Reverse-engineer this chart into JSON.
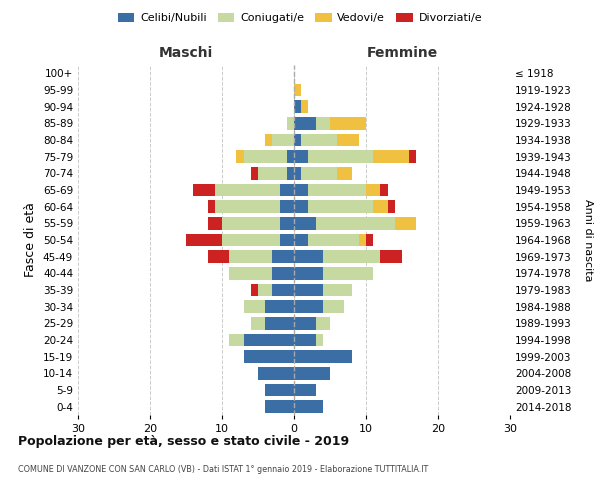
{
  "age_groups": [
    "0-4",
    "5-9",
    "10-14",
    "15-19",
    "20-24",
    "25-29",
    "30-34",
    "35-39",
    "40-44",
    "45-49",
    "50-54",
    "55-59",
    "60-64",
    "65-69",
    "70-74",
    "75-79",
    "80-84",
    "85-89",
    "90-94",
    "95-99",
    "100+"
  ],
  "birth_years": [
    "2014-2018",
    "2009-2013",
    "2004-2008",
    "1999-2003",
    "1994-1998",
    "1989-1993",
    "1984-1988",
    "1979-1983",
    "1974-1978",
    "1969-1973",
    "1964-1968",
    "1959-1963",
    "1954-1958",
    "1949-1953",
    "1944-1948",
    "1939-1943",
    "1934-1938",
    "1929-1933",
    "1924-1928",
    "1919-1923",
    "≤ 1918"
  ],
  "colors": {
    "celibi": "#3a6ea5",
    "coniugati": "#c5d9a0",
    "vedovi": "#f0c040",
    "divorziati": "#cc2222"
  },
  "males": {
    "celibi": [
      4,
      4,
      5,
      7,
      7,
      4,
      4,
      3,
      3,
      3,
      2,
      2,
      2,
      2,
      1,
      1,
      0,
      0,
      0,
      0,
      0
    ],
    "coniugati": [
      0,
      0,
      0,
      0,
      2,
      2,
      3,
      2,
      6,
      6,
      8,
      8,
      9,
      9,
      4,
      6,
      3,
      1,
      0,
      0,
      0
    ],
    "vedovi": [
      0,
      0,
      0,
      0,
      0,
      0,
      0,
      0,
      0,
      0,
      0,
      0,
      0,
      0,
      0,
      1,
      1,
      0,
      0,
      0,
      0
    ],
    "divorziati": [
      0,
      0,
      0,
      0,
      0,
      0,
      0,
      1,
      0,
      3,
      5,
      2,
      1,
      3,
      1,
      0,
      0,
      0,
      0,
      0,
      0
    ]
  },
  "females": {
    "celibi": [
      4,
      3,
      5,
      8,
      3,
      3,
      4,
      4,
      4,
      4,
      2,
      3,
      2,
      2,
      1,
      2,
      1,
      3,
      1,
      0,
      0
    ],
    "coniugati": [
      0,
      0,
      0,
      0,
      1,
      2,
      3,
      4,
      7,
      8,
      7,
      11,
      9,
      8,
      5,
      9,
      5,
      2,
      0,
      0,
      0
    ],
    "vedovi": [
      0,
      0,
      0,
      0,
      0,
      0,
      0,
      0,
      0,
      0,
      1,
      3,
      2,
      2,
      2,
      5,
      3,
      5,
      1,
      1,
      0
    ],
    "divorziati": [
      0,
      0,
      0,
      0,
      0,
      0,
      0,
      0,
      0,
      3,
      1,
      0,
      1,
      1,
      0,
      1,
      0,
      0,
      0,
      0,
      0
    ]
  },
  "title": "Popolazione per età, sesso e stato civile - 2019",
  "subtitle": "COMUNE DI VANZONE CON SAN CARLO (VB) - Dati ISTAT 1° gennaio 2019 - Elaborazione TUTTITALIA.IT",
  "xlabel_left": "Maschi",
  "xlabel_right": "Femmine",
  "ylabel_left": "Fasce di età",
  "ylabel_right": "Anni di nascita",
  "xlim": 30,
  "legend_labels": [
    "Celibi/Nubili",
    "Coniugati/e",
    "Vedovi/e",
    "Divorziati/e"
  ]
}
